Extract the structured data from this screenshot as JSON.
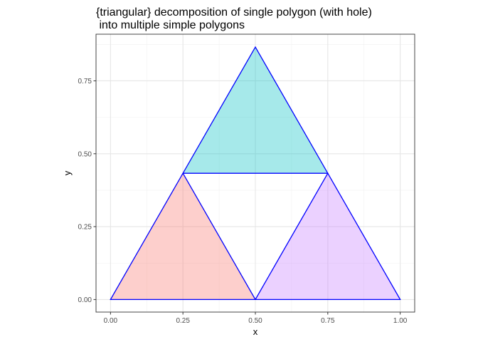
{
  "chart_data": {
    "type": "polygon",
    "title_lines": [
      "{triangular} decomposition of single polygon (with hole)",
      " into multiple simple polygons"
    ],
    "xlabel": "x",
    "ylabel": "y",
    "xlim": [
      -0.05,
      1.05
    ],
    "ylim": [
      -0.043,
      0.91
    ],
    "x_ticks": [
      0.0,
      0.25,
      0.5,
      0.75,
      1.0
    ],
    "x_tick_labels": [
      "0.00",
      "0.25",
      "0.50",
      "0.75",
      "1.00"
    ],
    "y_ticks": [
      0.0,
      0.25,
      0.5,
      0.75
    ],
    "y_tick_labels": [
      "0.00",
      "0.25",
      "0.50",
      "0.75"
    ],
    "grid": true,
    "polygons": [
      {
        "points": [
          [
            0.0,
            0.0
          ],
          [
            0.5,
            0.0
          ],
          [
            0.25,
            0.433
          ]
        ],
        "fill": "#f8766d"
      },
      {
        "points": [
          [
            0.5,
            0.0
          ],
          [
            1.0,
            0.0
          ],
          [
            0.75,
            0.433
          ]
        ],
        "fill": "#c77cff"
      },
      {
        "points": [
          [
            0.25,
            0.433
          ],
          [
            0.75,
            0.433
          ],
          [
            0.5,
            0.866
          ]
        ],
        "fill": "#00bfc4"
      }
    ],
    "fill_opacity": 0.35,
    "stroke_color": "#0000ff"
  }
}
